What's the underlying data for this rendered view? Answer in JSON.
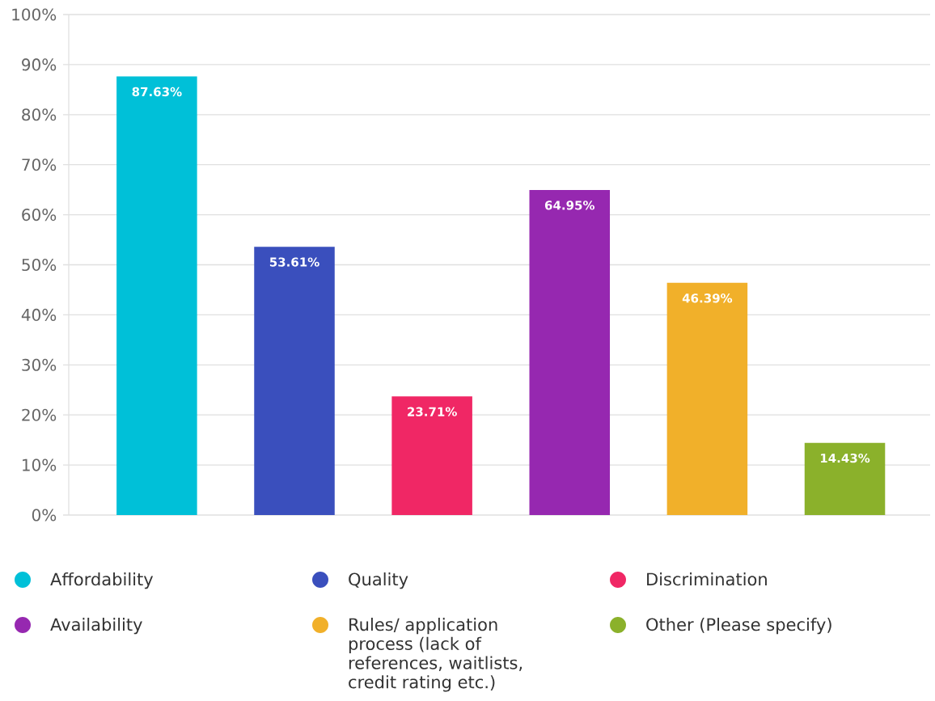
{
  "chart_data": {
    "type": "bar",
    "stacked": true,
    "categories": [
      null,
      null,
      null,
      null,
      null,
      null
    ],
    "series": [
      {
        "name": "Affordability",
        "color": "#00c0d8",
        "values": [
          87.63,
          null,
          null,
          null,
          null,
          null
        ],
        "value_labels": [
          "87.63%",
          null,
          null,
          null,
          null,
          null
        ]
      },
      {
        "name": "Quality",
        "color": "#3a4fbd",
        "values": [
          null,
          53.61,
          null,
          null,
          null,
          null
        ],
        "value_labels": [
          null,
          "53.61%",
          null,
          null,
          null,
          null
        ]
      },
      {
        "name": "Discrimination",
        "color": "#f02765",
        "values": [
          null,
          null,
          23.71,
          null,
          null,
          null
        ],
        "value_labels": [
          null,
          null,
          "23.71%",
          null,
          null,
          null
        ]
      },
      {
        "name": "Availability",
        "color": "#9628b0",
        "values": [
          null,
          null,
          null,
          64.95,
          null,
          null
        ],
        "value_labels": [
          null,
          null,
          null,
          "64.95%",
          null,
          null
        ]
      },
      {
        "name": "Rules/ application process (lack of references, waitlists, credit rating etc.)",
        "color": "#f1b02a",
        "values": [
          null,
          null,
          null,
          null,
          46.39,
          null
        ],
        "value_labels": [
          null,
          null,
          null,
          null,
          "46.39%",
          null
        ]
      },
      {
        "name": "Other (Please specify)",
        "color": "#8bb12b",
        "values": [
          null,
          null,
          null,
          null,
          null,
          14.43
        ],
        "value_labels": [
          null,
          null,
          null,
          null,
          null,
          "14.43%"
        ]
      }
    ],
    "ylim": [
      0,
      100
    ],
    "yticks": [
      {
        "value": 0,
        "label": "0%"
      },
      {
        "value": 10,
        "label": "10%"
      },
      {
        "value": 20,
        "label": "20%"
      },
      {
        "value": 30,
        "label": "30%"
      },
      {
        "value": 40,
        "label": "40%"
      },
      {
        "value": 50,
        "label": "50%"
      },
      {
        "value": 60,
        "label": "60%"
      },
      {
        "value": 70,
        "label": "70%"
      },
      {
        "value": 80,
        "label": "80%"
      },
      {
        "value": 90,
        "label": "90%"
      },
      {
        "value": 100,
        "label": "100%"
      }
    ],
    "grid": "y",
    "legend": "bottom",
    "tick_labels": "y"
  }
}
